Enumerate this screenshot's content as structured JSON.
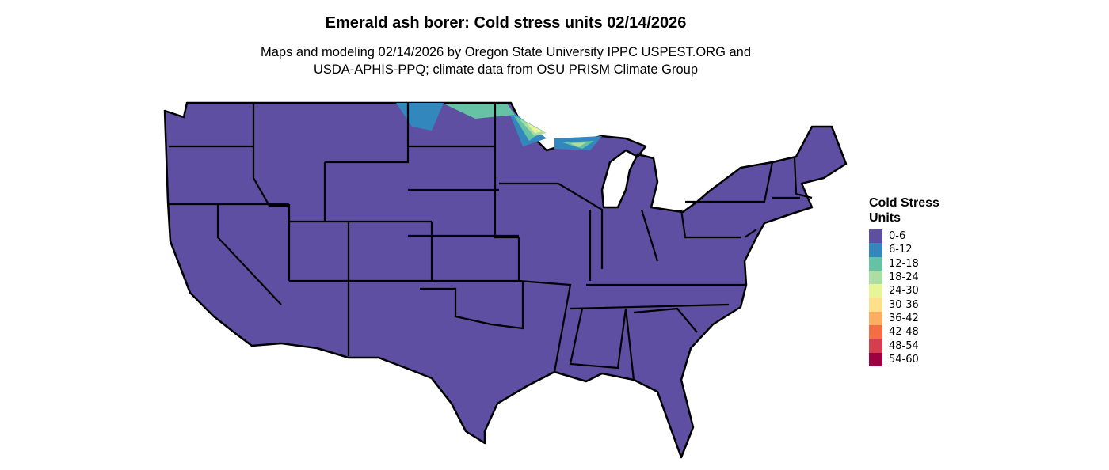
{
  "title": "Emerald ash borer: Cold stress units 02/14/2026",
  "subtitle_line1": "Maps and modeling 02/14/2026 by Oregon State University IPPC USPEST.ORG and",
  "subtitle_line2": "USDA-APHIS-PPQ; climate data from OSU PRISM Climate Group",
  "map": {
    "region": "Contiguous United States",
    "base_color": "#5E4FA2",
    "border_color": "#000000"
  },
  "legend": {
    "title_line1": "Cold Stress",
    "title_line2": "Units",
    "items": [
      {
        "label": "0-6",
        "color": "#5E4FA2"
      },
      {
        "label": "6-12",
        "color": "#3288BD"
      },
      {
        "label": "12-18",
        "color": "#66C2A5"
      },
      {
        "label": "18-24",
        "color": "#ABDDA4"
      },
      {
        "label": "24-30",
        "color": "#E6F598"
      },
      {
        "label": "30-36",
        "color": "#FEE08B"
      },
      {
        "label": "36-42",
        "color": "#FDAE61"
      },
      {
        "label": "42-48",
        "color": "#F46D43"
      },
      {
        "label": "48-54",
        "color": "#D53E4F"
      },
      {
        "label": "54-60",
        "color": "#9E0142"
      }
    ]
  }
}
